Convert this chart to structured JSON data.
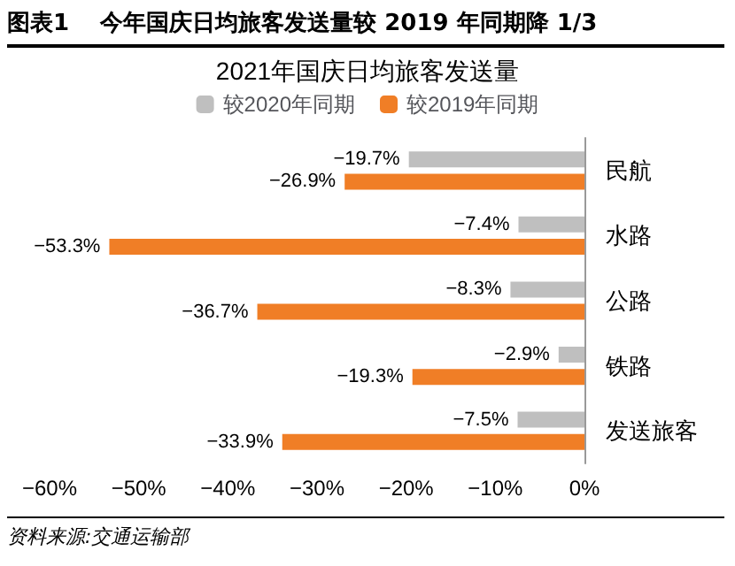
{
  "chart_data": {
    "type": "bar",
    "orientation": "horizontal",
    "title": "图表1　 今年国庆日均旅客发送量较 2019 年同期降 1/3",
    "subtitle": "2021年国庆日均旅客发送量",
    "categories": [
      "民航",
      "水路",
      "公路",
      "铁路",
      "发送旅客"
    ],
    "series": [
      {
        "name": "较2020年同期",
        "color": "#bfbfbf",
        "values": [
          -19.7,
          -7.4,
          -8.3,
          -2.9,
          -7.5
        ],
        "value_labels": [
          "−19.7%",
          "−7.4%",
          "−8.3%",
          "−2.9%",
          "−7.5%"
        ]
      },
      {
        "name": "较2019年同期",
        "color": "#f07e26",
        "values": [
          -26.9,
          -53.3,
          -36.7,
          -19.3,
          -33.9
        ],
        "value_labels": [
          "−26.9%",
          "−53.3%",
          "−36.7%",
          "−19.3%",
          "−33.9%"
        ]
      }
    ],
    "xlim": [
      -60,
      0
    ],
    "xticks": [
      {
        "value": -60,
        "label": "−60%"
      },
      {
        "value": -50,
        "label": "−50%"
      },
      {
        "value": -40,
        "label": "−40%"
      },
      {
        "value": -30,
        "label": "−30%"
      },
      {
        "value": -20,
        "label": "−20%"
      },
      {
        "value": -10,
        "label": "−10%"
      },
      {
        "value": 0,
        "label": "0%"
      }
    ],
    "legend": "top",
    "grid": false,
    "annotations": [
      "资料来源:交通运输部"
    ]
  }
}
